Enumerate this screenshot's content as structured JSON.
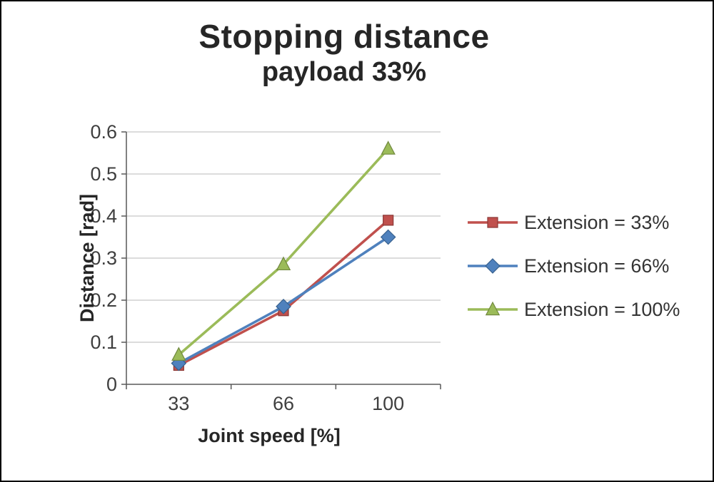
{
  "title": "Stopping distance",
  "subtitle": "payload 33%",
  "chart_data": {
    "type": "line",
    "title": "Stopping distance",
    "subtitle": "payload 33%",
    "xlabel": "Joint speed [%]",
    "ylabel": "Distance [rad]",
    "categories": [
      "33",
      "66",
      "100"
    ],
    "series": [
      {
        "name": "Extension = 33%",
        "values": [
          0.045,
          0.175,
          0.39
        ],
        "color": "#c0504d",
        "edge_color": "#8c3836",
        "marker": "square"
      },
      {
        "name": "Extension = 66%",
        "values": [
          0.05,
          0.185,
          0.35
        ],
        "color": "#4f81bd",
        "edge_color": "#38618e",
        "marker": "diamond"
      },
      {
        "name": "Extension = 100%",
        "values": [
          0.07,
          0.285,
          0.56
        ],
        "color": "#9bbb59",
        "edge_color": "#71893f",
        "marker": "triangle"
      }
    ],
    "ylim": [
      0,
      0.6
    ],
    "ytick_step": 0.1,
    "ytick_labels": [
      "0",
      "0.1",
      "0.2",
      "0.3",
      "0.4",
      "0.5",
      "0.6"
    ],
    "grid": true,
    "legend_position": "right",
    "gridline_color": "#c6c6c6",
    "axis_color": "#595959",
    "text_color": "#3f3f3f"
  }
}
